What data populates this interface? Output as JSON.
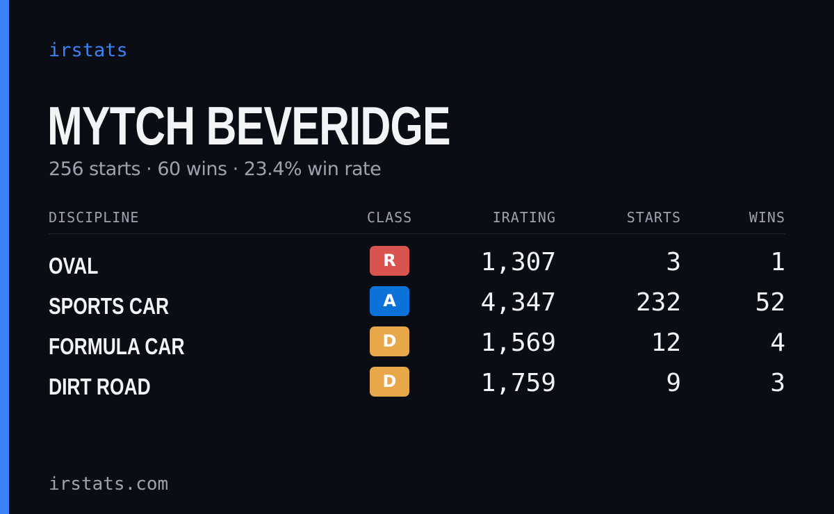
{
  "brand": "irstats",
  "driver": {
    "name": "MYTCH BEVERIDGE",
    "summary": "256 starts · 60 wins · 23.4% win rate"
  },
  "table": {
    "headers": {
      "discipline": "DISCIPLINE",
      "class": "CLASS",
      "irating": "IRATING",
      "starts": "STARTS",
      "wins": "WINS"
    },
    "rows": [
      {
        "discipline": "OVAL",
        "class": "R",
        "class_color": "#d9534f",
        "irating": "1,307",
        "starts": "3",
        "wins": "1"
      },
      {
        "discipline": "SPORTS CAR",
        "class": "A",
        "class_color": "#0b72d9",
        "irating": "4,347",
        "starts": "232",
        "wins": "52"
      },
      {
        "discipline": "FORMULA CAR",
        "class": "D",
        "class_color": "#e8a84a",
        "irating": "1,569",
        "starts": "12",
        "wins": "4"
      },
      {
        "discipline": "DIRT ROAD",
        "class": "D",
        "class_color": "#e8a84a",
        "irating": "1,759",
        "starts": "9",
        "wins": "3"
      }
    ]
  },
  "footer": "irstats.com",
  "colors": {
    "background": "#0b0d14",
    "accent": "#3b82f6",
    "text": "#f3f4f6",
    "muted": "#9ca3af"
  }
}
